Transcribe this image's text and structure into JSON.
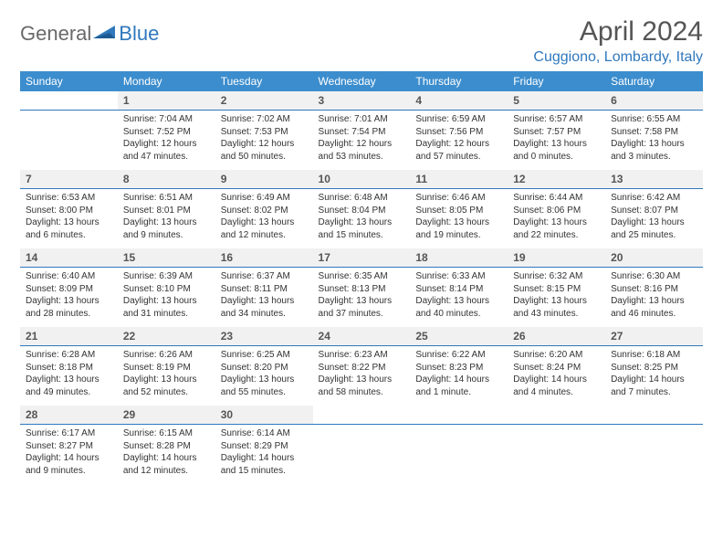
{
  "logo": {
    "general": "General",
    "blue": "Blue"
  },
  "title": "April 2024",
  "location": "Cuggiono, Lombardy, Italy",
  "colors": {
    "header_bg": "#3c8dcd",
    "accent": "#2f78bd",
    "daynum_bg": "#f1f1f1",
    "text": "#333333",
    "title_text": "#555555"
  },
  "typography": {
    "title_fontsize": 30,
    "location_fontsize": 16,
    "dow_fontsize": 12,
    "daynum_fontsize": 12,
    "cell_fontsize": 10
  },
  "dow": [
    "Sunday",
    "Monday",
    "Tuesday",
    "Wednesday",
    "Thursday",
    "Friday",
    "Saturday"
  ],
  "weeks": [
    {
      "nums": [
        "",
        "1",
        "2",
        "3",
        "4",
        "5",
        "6"
      ],
      "cells": [
        null,
        {
          "sunrise": "Sunrise: 7:04 AM",
          "sunset": "Sunset: 7:52 PM",
          "day1": "Daylight: 12 hours",
          "day2": "and 47 minutes."
        },
        {
          "sunrise": "Sunrise: 7:02 AM",
          "sunset": "Sunset: 7:53 PM",
          "day1": "Daylight: 12 hours",
          "day2": "and 50 minutes."
        },
        {
          "sunrise": "Sunrise: 7:01 AM",
          "sunset": "Sunset: 7:54 PM",
          "day1": "Daylight: 12 hours",
          "day2": "and 53 minutes."
        },
        {
          "sunrise": "Sunrise: 6:59 AM",
          "sunset": "Sunset: 7:56 PM",
          "day1": "Daylight: 12 hours",
          "day2": "and 57 minutes."
        },
        {
          "sunrise": "Sunrise: 6:57 AM",
          "sunset": "Sunset: 7:57 PM",
          "day1": "Daylight: 13 hours",
          "day2": "and 0 minutes."
        },
        {
          "sunrise": "Sunrise: 6:55 AM",
          "sunset": "Sunset: 7:58 PM",
          "day1": "Daylight: 13 hours",
          "day2": "and 3 minutes."
        }
      ]
    },
    {
      "nums": [
        "7",
        "8",
        "9",
        "10",
        "11",
        "12",
        "13"
      ],
      "cells": [
        {
          "sunrise": "Sunrise: 6:53 AM",
          "sunset": "Sunset: 8:00 PM",
          "day1": "Daylight: 13 hours",
          "day2": "and 6 minutes."
        },
        {
          "sunrise": "Sunrise: 6:51 AM",
          "sunset": "Sunset: 8:01 PM",
          "day1": "Daylight: 13 hours",
          "day2": "and 9 minutes."
        },
        {
          "sunrise": "Sunrise: 6:49 AM",
          "sunset": "Sunset: 8:02 PM",
          "day1": "Daylight: 13 hours",
          "day2": "and 12 minutes."
        },
        {
          "sunrise": "Sunrise: 6:48 AM",
          "sunset": "Sunset: 8:04 PM",
          "day1": "Daylight: 13 hours",
          "day2": "and 15 minutes."
        },
        {
          "sunrise": "Sunrise: 6:46 AM",
          "sunset": "Sunset: 8:05 PM",
          "day1": "Daylight: 13 hours",
          "day2": "and 19 minutes."
        },
        {
          "sunrise": "Sunrise: 6:44 AM",
          "sunset": "Sunset: 8:06 PM",
          "day1": "Daylight: 13 hours",
          "day2": "and 22 minutes."
        },
        {
          "sunrise": "Sunrise: 6:42 AM",
          "sunset": "Sunset: 8:07 PM",
          "day1": "Daylight: 13 hours",
          "day2": "and 25 minutes."
        }
      ]
    },
    {
      "nums": [
        "14",
        "15",
        "16",
        "17",
        "18",
        "19",
        "20"
      ],
      "cells": [
        {
          "sunrise": "Sunrise: 6:40 AM",
          "sunset": "Sunset: 8:09 PM",
          "day1": "Daylight: 13 hours",
          "day2": "and 28 minutes."
        },
        {
          "sunrise": "Sunrise: 6:39 AM",
          "sunset": "Sunset: 8:10 PM",
          "day1": "Daylight: 13 hours",
          "day2": "and 31 minutes."
        },
        {
          "sunrise": "Sunrise: 6:37 AM",
          "sunset": "Sunset: 8:11 PM",
          "day1": "Daylight: 13 hours",
          "day2": "and 34 minutes."
        },
        {
          "sunrise": "Sunrise: 6:35 AM",
          "sunset": "Sunset: 8:13 PM",
          "day1": "Daylight: 13 hours",
          "day2": "and 37 minutes."
        },
        {
          "sunrise": "Sunrise: 6:33 AM",
          "sunset": "Sunset: 8:14 PM",
          "day1": "Daylight: 13 hours",
          "day2": "and 40 minutes."
        },
        {
          "sunrise": "Sunrise: 6:32 AM",
          "sunset": "Sunset: 8:15 PM",
          "day1": "Daylight: 13 hours",
          "day2": "and 43 minutes."
        },
        {
          "sunrise": "Sunrise: 6:30 AM",
          "sunset": "Sunset: 8:16 PM",
          "day1": "Daylight: 13 hours",
          "day2": "and 46 minutes."
        }
      ]
    },
    {
      "nums": [
        "21",
        "22",
        "23",
        "24",
        "25",
        "26",
        "27"
      ],
      "cells": [
        {
          "sunrise": "Sunrise: 6:28 AM",
          "sunset": "Sunset: 8:18 PM",
          "day1": "Daylight: 13 hours",
          "day2": "and 49 minutes."
        },
        {
          "sunrise": "Sunrise: 6:26 AM",
          "sunset": "Sunset: 8:19 PM",
          "day1": "Daylight: 13 hours",
          "day2": "and 52 minutes."
        },
        {
          "sunrise": "Sunrise: 6:25 AM",
          "sunset": "Sunset: 8:20 PM",
          "day1": "Daylight: 13 hours",
          "day2": "and 55 minutes."
        },
        {
          "sunrise": "Sunrise: 6:23 AM",
          "sunset": "Sunset: 8:22 PM",
          "day1": "Daylight: 13 hours",
          "day2": "and 58 minutes."
        },
        {
          "sunrise": "Sunrise: 6:22 AM",
          "sunset": "Sunset: 8:23 PM",
          "day1": "Daylight: 14 hours",
          "day2": "and 1 minute."
        },
        {
          "sunrise": "Sunrise: 6:20 AM",
          "sunset": "Sunset: 8:24 PM",
          "day1": "Daylight: 14 hours",
          "day2": "and 4 minutes."
        },
        {
          "sunrise": "Sunrise: 6:18 AM",
          "sunset": "Sunset: 8:25 PM",
          "day1": "Daylight: 14 hours",
          "day2": "and 7 minutes."
        }
      ]
    },
    {
      "nums": [
        "28",
        "29",
        "30",
        "",
        "",
        "",
        ""
      ],
      "cells": [
        {
          "sunrise": "Sunrise: 6:17 AM",
          "sunset": "Sunset: 8:27 PM",
          "day1": "Daylight: 14 hours",
          "day2": "and 9 minutes."
        },
        {
          "sunrise": "Sunrise: 6:15 AM",
          "sunset": "Sunset: 8:28 PM",
          "day1": "Daylight: 14 hours",
          "day2": "and 12 minutes."
        },
        {
          "sunrise": "Sunrise: 6:14 AM",
          "sunset": "Sunset: 8:29 PM",
          "day1": "Daylight: 14 hours",
          "day2": "and 15 minutes."
        },
        null,
        null,
        null,
        null
      ]
    }
  ]
}
